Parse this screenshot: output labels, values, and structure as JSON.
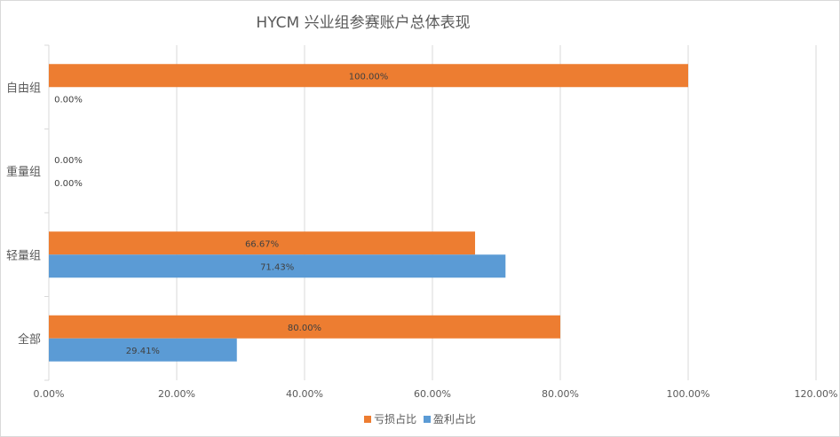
{
  "chart_data": {
    "type": "bar",
    "orientation": "horizontal",
    "title": "HYCM 兴业组参赛账户总体表现",
    "categories": [
      "自由组",
      "重量组",
      "轻量组",
      "全部"
    ],
    "series": [
      {
        "name": "亏损占比",
        "color": "#ed7d31",
        "values": [
          100.0,
          0.0,
          66.67,
          80.0
        ],
        "labels": [
          "100.00%",
          "0.00%",
          "66.67%",
          "80.00%"
        ]
      },
      {
        "name": "盈利占比",
        "color": "#5b9bd5",
        "values": [
          0.0,
          0.0,
          71.43,
          29.41
        ],
        "labels": [
          "0.00%",
          "0.00%",
          "71.43%",
          "29.41%"
        ]
      }
    ],
    "xlim": [
      0,
      120
    ],
    "x_ticks": [
      0,
      20,
      40,
      60,
      80,
      100,
      120
    ],
    "x_tick_labels": [
      "0.00%",
      "20.00%",
      "40.00%",
      "60.00%",
      "80.00%",
      "100.00%",
      "120.00%"
    ],
    "grid": true,
    "legend_position": "bottom",
    "colors": {
      "grid": "#d9d9d9",
      "text": "#595959",
      "bar_label": "#404040"
    }
  }
}
